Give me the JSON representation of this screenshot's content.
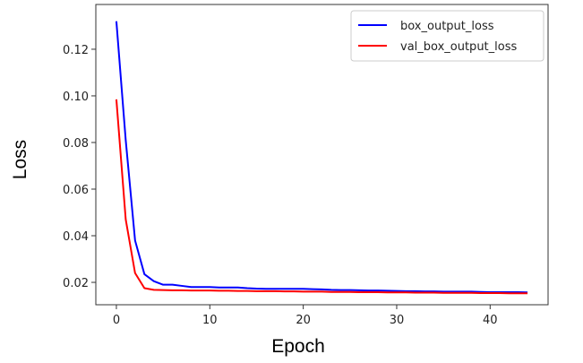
{
  "chart_data": {
    "type": "line",
    "title": "",
    "xlabel": "Epoch",
    "ylabel": "Loss",
    "xlim": [
      -2.2,
      46.2
    ],
    "ylim": [
      0.0104,
      0.1392
    ],
    "xticks": [
      0,
      10,
      20,
      30,
      40
    ],
    "yticks": [
      0.02,
      0.04,
      0.06,
      0.08,
      0.1,
      0.12
    ],
    "ytick_labels": [
      "0.02",
      "0.04",
      "0.06",
      "0.08",
      "0.10",
      "0.12"
    ],
    "grid": false,
    "legend_position": "top-right",
    "x": [
      0,
      1,
      2,
      3,
      4,
      5,
      6,
      7,
      8,
      9,
      10,
      11,
      12,
      13,
      14,
      15,
      16,
      17,
      18,
      19,
      20,
      21,
      22,
      23,
      24,
      25,
      26,
      27,
      28,
      29,
      30,
      31,
      32,
      33,
      34,
      35,
      36,
      37,
      38,
      39,
      40,
      41,
      42,
      43,
      44
    ],
    "series": [
      {
        "name": "box_output_loss",
        "color": "#0000ff",
        "values": [
          0.132,
          0.081,
          0.038,
          0.0235,
          0.0205,
          0.019,
          0.019,
          0.0185,
          0.018,
          0.018,
          0.018,
          0.0178,
          0.0178,
          0.0178,
          0.0175,
          0.0173,
          0.0172,
          0.0172,
          0.0172,
          0.0172,
          0.0172,
          0.0171,
          0.017,
          0.0168,
          0.0167,
          0.0167,
          0.0166,
          0.0165,
          0.0165,
          0.0164,
          0.0163,
          0.0162,
          0.0162,
          0.0161,
          0.0161,
          0.016,
          0.016,
          0.016,
          0.016,
          0.0159,
          0.0158,
          0.0158,
          0.0158,
          0.0158,
          0.0157
        ]
      },
      {
        "name": "val_box_output_loss",
        "color": "#ff0000",
        "values": [
          0.0985,
          0.047,
          0.024,
          0.0175,
          0.0168,
          0.0167,
          0.0166,
          0.0166,
          0.0165,
          0.0165,
          0.0165,
          0.0164,
          0.0164,
          0.0163,
          0.0163,
          0.0162,
          0.0162,
          0.0162,
          0.0161,
          0.0161,
          0.016,
          0.016,
          0.016,
          0.0159,
          0.0159,
          0.0159,
          0.0158,
          0.0158,
          0.0158,
          0.0157,
          0.0157,
          0.0157,
          0.0156,
          0.0156,
          0.0156,
          0.0155,
          0.0155,
          0.0155,
          0.0155,
          0.0154,
          0.0154,
          0.0154,
          0.0153,
          0.0153,
          0.0153
        ]
      }
    ]
  }
}
